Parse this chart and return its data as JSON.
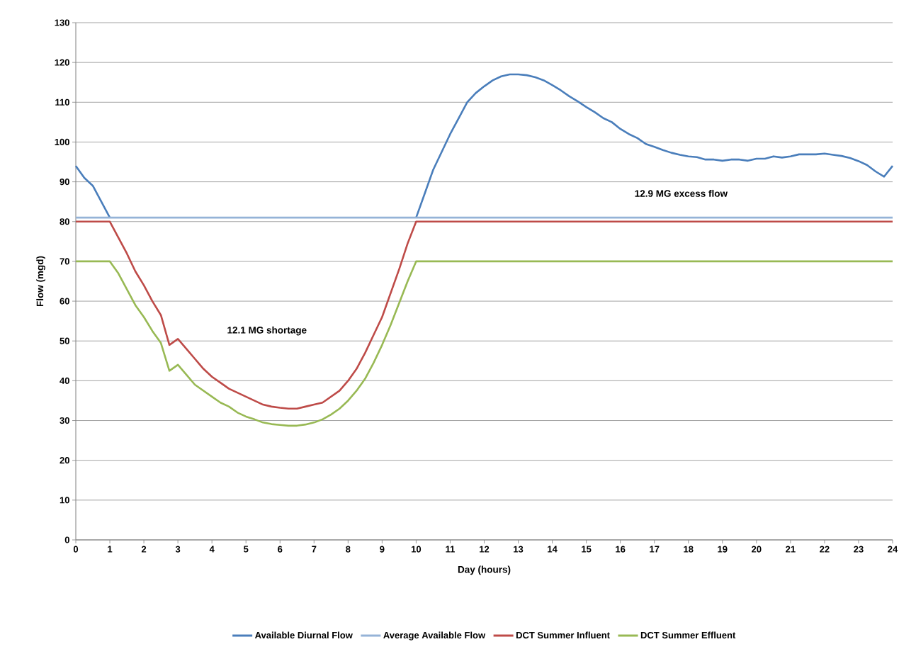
{
  "chart_data": {
    "type": "line",
    "xlabel": "Day (hours)",
    "ylabel": "Flow (mgd)",
    "xlim": [
      0,
      24
    ],
    "ylim": [
      0,
      130
    ],
    "xticks": [
      0,
      1,
      2,
      3,
      4,
      5,
      6,
      7,
      8,
      9,
      10,
      11,
      12,
      13,
      14,
      15,
      16,
      17,
      18,
      19,
      20,
      21,
      22,
      23,
      24
    ],
    "yticks": [
      0,
      10,
      20,
      30,
      40,
      50,
      60,
      70,
      80,
      90,
      100,
      110,
      120,
      130
    ],
    "grid": "y",
    "legend": "bottom",
    "line_style": "solid",
    "marker": "none",
    "annotations": [
      "12.1 MG shortage",
      "12.9 MG excess flow"
    ],
    "series": [
      {
        "name": "Available Diurnal Flow",
        "color": "#4a7ebb",
        "x": [
          0,
          0.25,
          0.5,
          0.75,
          1,
          5.5,
          10,
          10.25,
          10.5,
          10.75,
          11,
          11.25,
          11.5,
          11.75,
          12,
          12.25,
          12.5,
          12.75,
          13,
          13.25,
          13.5,
          13.75,
          14,
          14.25,
          14.5,
          14.75,
          15,
          15.25,
          15.5,
          15.75,
          16,
          16.25,
          16.5,
          16.75,
          17,
          17.25,
          17.5,
          17.75,
          18,
          18.25,
          18.5,
          18.75,
          19,
          19.25,
          19.5,
          19.75,
          20,
          20.25,
          20.5,
          20.75,
          21,
          21.25,
          21.5,
          21.75,
          22,
          22.25,
          22.5,
          22.75,
          23,
          23.25,
          23.5,
          23.75,
          24
        ],
        "values": [
          94,
          91,
          89,
          85,
          81,
          null,
          81,
          87,
          93,
          97.5,
          102,
          106,
          110,
          112.3,
          114,
          115.5,
          116.5,
          117,
          117,
          116.8,
          116.3,
          115.5,
          114.3,
          113,
          111.5,
          110.2,
          108.8,
          107.5,
          106,
          105,
          103.3,
          102,
          101,
          99.5,
          98.8,
          98,
          97.3,
          96.8,
          96.4,
          96.2,
          95.6,
          95.6,
          95.3,
          95.6,
          95.6,
          95.3,
          95.8,
          95.8,
          96.4,
          96.1,
          96.4,
          96.9,
          96.9,
          96.9,
          97.1,
          96.8,
          96.5,
          96,
          95.2,
          94.2,
          92.6,
          91.3,
          94
        ]
      },
      {
        "name": "Average Available Flow",
        "color": "#95b3d7",
        "x": [
          0,
          24
        ],
        "values": [
          81,
          81
        ]
      },
      {
        "name": "DCT Summer Influent",
        "color": "#be4b48",
        "x": [
          0,
          0.25,
          0.5,
          0.75,
          1,
          1.25,
          1.5,
          1.75,
          2,
          2.25,
          2.5,
          2.75,
          3,
          3.25,
          3.5,
          3.75,
          4,
          4.25,
          4.5,
          4.75,
          5,
          5.25,
          5.5,
          5.75,
          6,
          6.25,
          6.5,
          6.75,
          7,
          7.25,
          7.5,
          7.75,
          8,
          8.25,
          8.5,
          8.75,
          9,
          9.25,
          9.5,
          9.75,
          10,
          24
        ],
        "values": [
          80,
          80,
          80,
          80,
          80,
          76,
          72,
          67.5,
          64,
          60,
          56.5,
          49,
          50.5,
          48,
          45.5,
          43,
          41,
          39.5,
          38,
          37,
          36,
          35,
          34,
          33.5,
          33.2,
          33,
          33,
          33.5,
          34,
          34.5,
          36,
          37.5,
          40,
          43,
          47,
          51.5,
          56,
          62,
          68,
          74.5,
          80,
          80
        ]
      },
      {
        "name": "DCT Summer Effluent",
        "color": "#98b954",
        "x": [
          0,
          0.25,
          0.5,
          0.75,
          1,
          1.25,
          1.5,
          1.75,
          2,
          2.25,
          2.5,
          2.75,
          3,
          3.25,
          3.5,
          3.75,
          4,
          4.25,
          4.5,
          4.75,
          5,
          5.25,
          5.5,
          5.75,
          6,
          6.25,
          6.5,
          6.75,
          7,
          7.25,
          7.5,
          7.75,
          8,
          8.25,
          8.5,
          8.75,
          9,
          9.25,
          9.5,
          9.75,
          10,
          24
        ],
        "values": [
          70,
          70,
          70,
          70,
          70,
          67,
          63,
          59,
          56,
          52.5,
          49.5,
          42.5,
          44,
          41.5,
          39,
          37.5,
          36,
          34.5,
          33.5,
          32,
          31,
          30.3,
          29.5,
          29.1,
          28.9,
          28.7,
          28.7,
          29,
          29.5,
          30.3,
          31.5,
          33,
          35,
          37.5,
          40.5,
          44.5,
          49,
          54,
          59.5,
          65,
          70,
          70
        ]
      }
    ]
  }
}
